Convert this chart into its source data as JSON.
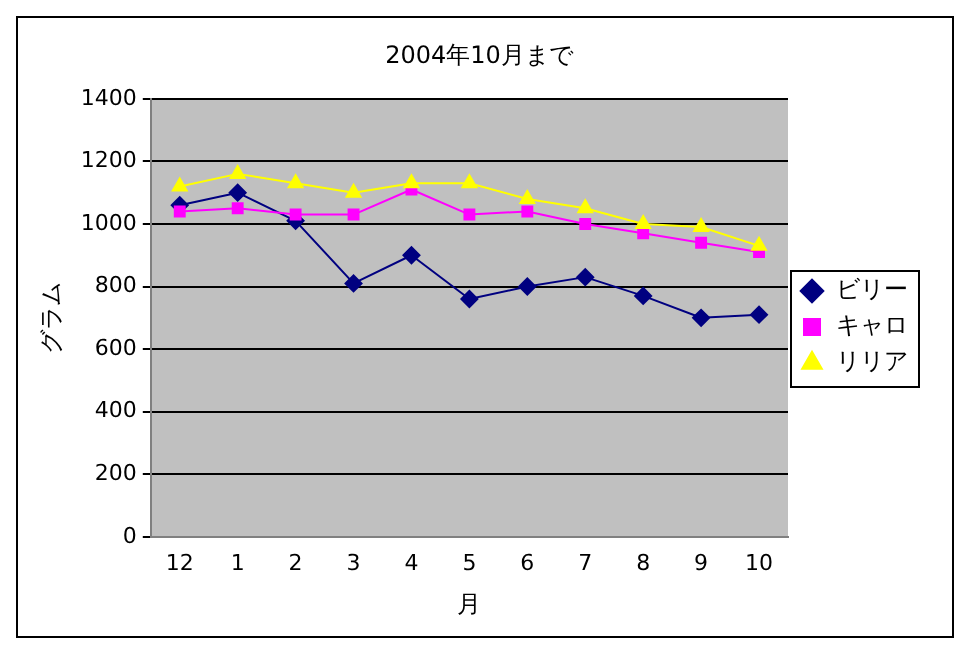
{
  "chart_data": {
    "type": "line",
    "title": "2004年10月まで",
    "xlabel": "月",
    "ylabel": "グラム",
    "categories": [
      "12",
      "1",
      "2",
      "3",
      "4",
      "5",
      "6",
      "7",
      "8",
      "9",
      "10"
    ],
    "ylim": [
      0,
      1400
    ],
    "yticks": [
      0,
      200,
      400,
      600,
      800,
      1000,
      1200,
      1400
    ],
    "grid": "y",
    "legend": "right",
    "line_style": "solid",
    "series": [
      {
        "name": "ビリー",
        "color": "#000080",
        "marker": "diamond",
        "values": [
          1060,
          1100,
          1010,
          810,
          900,
          760,
          800,
          830,
          770,
          700,
          710
        ]
      },
      {
        "name": "キャロ",
        "color": "#ff00ff",
        "marker": "square",
        "values": [
          1040,
          1050,
          1030,
          1030,
          1110,
          1030,
          1040,
          1000,
          970,
          940,
          910
        ]
      },
      {
        "name": "リリア",
        "color": "#ffff00",
        "marker": "triangle",
        "values": [
          1120,
          1160,
          1130,
          1100,
          1130,
          1130,
          1080,
          1050,
          1000,
          990,
          930
        ]
      }
    ]
  }
}
